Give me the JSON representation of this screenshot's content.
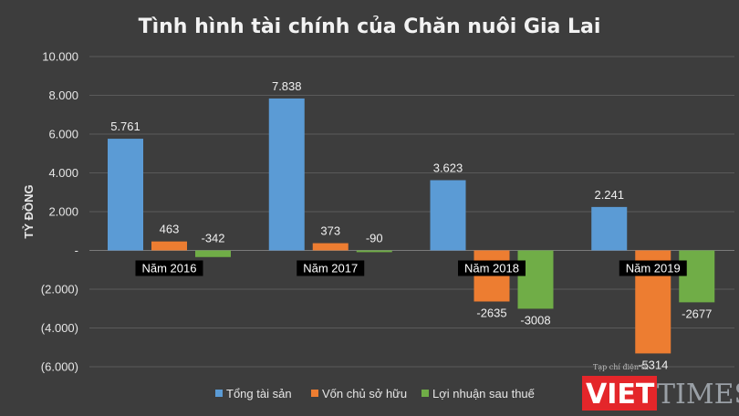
{
  "colors": {
    "background": "#3d3d3d",
    "grid": "#5a5a5a",
    "tong_tai_san": "#5b9bd5",
    "von_chu_so_huu": "#ed7d31",
    "loi_nhuan": "#70ad47",
    "watermark_red": "#e4262a"
  },
  "chart_data": {
    "type": "bar",
    "title": "Tình hình tài chính của Chăn nuôi Gia Lai",
    "ylabel": "TỶ ĐỒNG",
    "xlabel": "",
    "ylim": [
      -6000,
      10000
    ],
    "y_ticks": [
      10000,
      8000,
      6000,
      4000,
      2000,
      0,
      -2000,
      -4000,
      -6000
    ],
    "y_tick_labels": [
      "10.000",
      "8.000",
      "6.000",
      "4.000",
      "2.000",
      "-",
      "(2.000)",
      "(4.000)",
      "(6.000)"
    ],
    "grid": true,
    "legend_position": "bottom",
    "categories": [
      "Năm 2016",
      "Năm 2017",
      "Năm 2018",
      "Năm 2019"
    ],
    "series": [
      {
        "name": "Tổng tài sản",
        "values": [
          5761,
          7838,
          3623,
          2241
        ],
        "labels": [
          "5.761",
          "7.838",
          "3.623",
          "2.241"
        ]
      },
      {
        "name": "Vốn chủ sở hữu",
        "values": [
          463,
          373,
          -2635,
          -5314
        ],
        "labels": [
          "463",
          "373",
          "-2635",
          "-5314"
        ]
      },
      {
        "name": "Lợi nhuận sau thuế",
        "values": [
          -342,
          -90,
          -3008,
          -2677
        ],
        "labels": [
          "-342",
          "-90",
          "-3008",
          "-2677"
        ]
      }
    ]
  },
  "watermark": {
    "caption": "Tạp chí điện tử",
    "brand_left": "VIET",
    "brand_right": "TIMES"
  }
}
